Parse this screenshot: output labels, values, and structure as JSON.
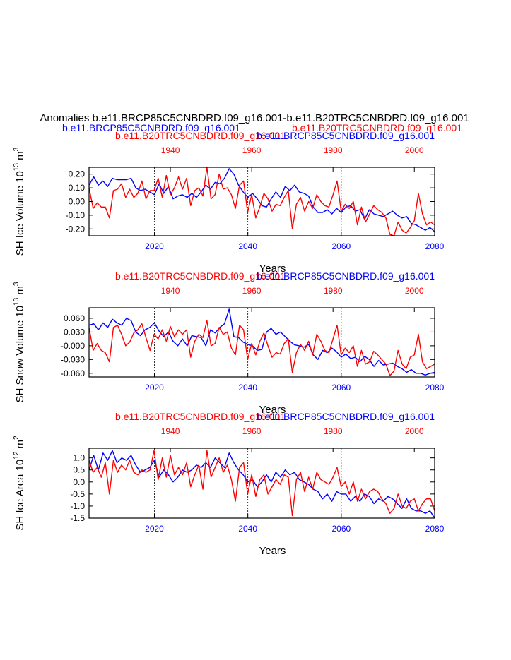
{
  "figure": {
    "main_title": "Anomalies b.e11.BRCP85C5CNBDRD.f09_g16.001-b.e11.B20TRC5CNBDRD.f09_g16.001",
    "header_left": "b.e11.BRCP85C5CNBDRD.f09_g16.001",
    "header_right": "b.e11.B20TRC5CNBDRD.f09_g16.001",
    "colors": {
      "blue_series": "#0000ff",
      "red_series": "#ff0000",
      "axis": "#000000",
      "grid": "#000000"
    }
  },
  "chart_data": [
    {
      "type": "line",
      "panel": "ice-volume",
      "subtitle_left": "b.e11.B20TRC5CNBDRD.f09_g16.001",
      "subtitle_right": "b.e11.BRCP85C5CNBDRD.f09_g16.001",
      "ylabel": "SH Ice Volume 10",
      "ylabel_exp": "13",
      "ylabel_unit": " m",
      "ylabel_unit_exp": "3",
      "xlabel": "Years",
      "xlim": [
        2006,
        2080
      ],
      "xlim_top": [
        1920,
        2005
      ],
      "ylim": [
        -0.25,
        0.25
      ],
      "yticks": [
        -0.2,
        -0.1,
        0.0,
        0.1,
        0.2
      ],
      "ytick_labels": [
        "-0.20",
        "-0.10",
        "0.00",
        "0.10",
        "0.20"
      ],
      "xticks": [
        2020,
        2040,
        2060,
        2080
      ],
      "xtick_labels": [
        "2020",
        "2040",
        "2060",
        "2080"
      ],
      "xticks_top": [
        1940,
        1960,
        1980,
        2000
      ],
      "xtick_labels_top": [
        "1940",
        "1960",
        "1980",
        "2000"
      ],
      "series": [
        {
          "name": "b.e11.BRCP85C5CNBDRD.f09_g16.001",
          "axis": "bottom",
          "x_start": 2006,
          "values": [
            0.12,
            0.18,
            0.12,
            0.15,
            0.11,
            0.17,
            0.16,
            0.16,
            0.16,
            0.17,
            0.1,
            0.08,
            0.09,
            0.07,
            0.05,
            0.13,
            0.06,
            0.11,
            0.02,
            0.04,
            0.05,
            0.03,
            0.06,
            0.03,
            0.07,
            0.12,
            0.09,
            0.14,
            0.13,
            0.17,
            0.24,
            0.2,
            0.12,
            0.07,
            0.03,
            0.06,
            0.02,
            -0.03,
            -0.04,
            0.02,
            0.07,
            0.03,
            0.11,
            0.08,
            0.12,
            0.07,
            0.06,
            0.04,
            -0.04,
            -0.08,
            -0.08,
            -0.06,
            -0.09,
            -0.05,
            -0.08,
            -0.04,
            -0.03,
            -0.07,
            -0.06,
            -0.13,
            -0.06,
            -0.09,
            -0.1,
            -0.11,
            -0.09,
            -0.07,
            -0.1,
            -0.12,
            -0.11,
            -0.16,
            -0.17,
            -0.19,
            -0.21,
            -0.19,
            -0.22
          ]
        },
        {
          "name": "b.e11.B20TRC5CNBDRD.f09_g16.001",
          "axis": "top",
          "x_start": 1920,
          "values": [
            0.1,
            -0.05,
            -0.01,
            -0.04,
            -0.04,
            -0.12,
            0.08,
            0.09,
            0.13,
            0.03,
            0.09,
            0.03,
            0.06,
            0.15,
            0.02,
            0.08,
            0.08,
            0.17,
            0.03,
            0.19,
            0.05,
            0.1,
            0.18,
            0.09,
            0.17,
            -0.03,
            0.08,
            0.1,
            0.04,
            0.26,
            0.02,
            0.05,
            0.2,
            0.09,
            0.1,
            0.05,
            -0.05,
            0.12,
            0.15,
            -0.08,
            0.05,
            -0.12,
            -0.04,
            0.06,
            0.02,
            -0.07,
            -0.02,
            -0.03,
            0.03,
            0.08,
            -0.2,
            -0.02,
            0.03,
            -0.07,
            0.0,
            -0.05,
            0.05,
            0.0,
            -0.03,
            -0.04,
            0.05,
            0.15,
            -0.07,
            -0.02,
            -0.05,
            0.0,
            -0.17,
            -0.04,
            -0.15,
            -0.09,
            -0.03,
            -0.06,
            -0.08,
            -0.12,
            -0.24,
            -0.26,
            -0.15,
            -0.21,
            -0.23,
            -0.19,
            -0.14,
            0.06,
            -0.09,
            -0.17,
            -0.15,
            -0.17
          ]
        }
      ]
    },
    {
      "type": "line",
      "panel": "snow-volume",
      "subtitle_left": "b.e11.B20TRC5CNBDRD.f09_g16.001",
      "subtitle_right": "b.e11.BRCP85C5CNBDRD.f09_g16.001",
      "ylabel": "SH Snow Volume 10",
      "ylabel_exp": "13",
      "ylabel_unit": " m",
      "ylabel_unit_exp": "3",
      "xlabel": "Years",
      "xlim": [
        2006,
        2080
      ],
      "xlim_top": [
        1920,
        2005
      ],
      "ylim": [
        -0.068,
        0.083
      ],
      "yticks": [
        -0.06,
        -0.03,
        0.0,
        0.03,
        0.06
      ],
      "ytick_labels": [
        "-0.060",
        "-0.030",
        "-0.000",
        "0.030",
        "0.060"
      ],
      "xticks": [
        2020,
        2040,
        2060,
        2080
      ],
      "xtick_labels": [
        "2020",
        "2040",
        "2060",
        "2080"
      ],
      "xticks_top": [
        1940,
        1960,
        1980,
        2000
      ],
      "xtick_labels_top": [
        "1940",
        "1960",
        "1980",
        "2000"
      ],
      "series": [
        {
          "name": "b.e11.BRCP85C5CNBDRD.f09_g16.001",
          "axis": "bottom",
          "x_start": 2006,
          "values": [
            0.045,
            0.048,
            0.035,
            0.05,
            0.04,
            0.058,
            0.05,
            0.045,
            0.06,
            0.055,
            0.03,
            0.022,
            0.035,
            0.04,
            0.05,
            0.032,
            0.02,
            0.03,
            0.01,
            0.0,
            0.015,
            0.0,
            0.022,
            0.02,
            0.018,
            0.0,
            0.035,
            0.028,
            0.04,
            0.048,
            0.08,
            0.02,
            0.018,
            0.008,
            0.003,
            0.0,
            -0.01,
            -0.008,
            0.03,
            0.038,
            0.025,
            0.03,
            0.02,
            0.01,
            0.002,
            0.0,
            -0.003,
            0.003,
            -0.02,
            -0.03,
            -0.01,
            -0.015,
            -0.005,
            -0.013,
            -0.025,
            -0.018,
            -0.028,
            -0.025,
            -0.035,
            -0.023,
            -0.03,
            -0.045,
            -0.032,
            -0.042,
            -0.04,
            -0.038,
            -0.045,
            -0.05,
            -0.058,
            -0.052,
            -0.06,
            -0.06,
            -0.064,
            -0.06,
            -0.058
          ]
        },
        {
          "name": "b.e11.B20TRC5CNBDRD.f09_g16.001",
          "axis": "top",
          "x_start": 1920,
          "values": [
            0.04,
            -0.01,
            0.005,
            -0.01,
            -0.015,
            -0.035,
            0.04,
            0.045,
            0.025,
            0.0,
            0.008,
            0.028,
            0.035,
            0.048,
            0.018,
            -0.01,
            0.025,
            0.015,
            0.035,
            0.01,
            0.042,
            0.02,
            0.035,
            0.025,
            0.035,
            -0.025,
            0.01,
            0.025,
            0.018,
            0.055,
            0.0,
            0.005,
            0.04,
            0.025,
            0.03,
            -0.005,
            -0.02,
            0.045,
            0.035,
            -0.03,
            0.005,
            -0.02,
            0.01,
            0.028,
            0.0,
            -0.025,
            -0.015,
            -0.018,
            0.005,
            0.015,
            -0.058,
            -0.015,
            0.003,
            -0.01,
            0.01,
            -0.02,
            0.025,
            0.01,
            -0.01,
            -0.015,
            0.015,
            0.045,
            -0.02,
            -0.005,
            -0.015,
            0.0,
            -0.045,
            -0.01,
            -0.04,
            -0.035,
            -0.012,
            -0.02,
            -0.03,
            -0.04,
            -0.065,
            -0.055,
            -0.01,
            -0.04,
            -0.05,
            -0.025,
            -0.02,
            0.025,
            -0.035,
            -0.05,
            -0.045,
            -0.04
          ]
        }
      ]
    },
    {
      "type": "line",
      "panel": "ice-area",
      "subtitle_left": "b.e11.B20TRC5CNBDRD.f09_g16.001",
      "subtitle_right": "b.e11.BRCP85C5CNBDRD.f09_g16.001",
      "ylabel": "SH Ice Area 10",
      "ylabel_exp": "12",
      "ylabel_unit": " m",
      "ylabel_unit_exp": "2",
      "xlabel": "Years",
      "xlim": [
        2006,
        2080
      ],
      "xlim_top": [
        1920,
        2005
      ],
      "ylim": [
        -1.5,
        1.4
      ],
      "yticks": [
        -1.5,
        -1.0,
        -0.5,
        0.0,
        0.5,
        1.0
      ],
      "ytick_labels": [
        "-1.5",
        "-1.0",
        "-0.5",
        "0.0",
        "0.5",
        "1.0"
      ],
      "xticks": [
        2020,
        2040,
        2060,
        2080
      ],
      "xtick_labels": [
        "2020",
        "2040",
        "2060",
        "2080"
      ],
      "xticks_top": [
        1940,
        1960,
        1980,
        2000
      ],
      "xtick_labels_top": [
        "1940",
        "1960",
        "1980",
        "2000"
      ],
      "series": [
        {
          "name": "b.e11.BRCP85C5CNBDRD.f09_g16.001",
          "axis": "bottom",
          "x_start": 2006,
          "values": [
            0.5,
            1.1,
            0.5,
            1.2,
            0.9,
            1.3,
            0.8,
            1.0,
            0.9,
            1.1,
            0.7,
            0.4,
            0.5,
            0.6,
            0.9,
            0.2,
            0.5,
            0.3,
            0.0,
            0.2,
            0.5,
            0.4,
            0.5,
            0.7,
            0.6,
            0.8,
            0.6,
            1.0,
            0.8,
            0.6,
            1.2,
            0.8,
            0.5,
            0.3,
            0.0,
            0.1,
            -0.2,
            0.0,
            0.3,
            0.0,
            0.4,
            0.2,
            0.5,
            0.3,
            0.4,
            0.1,
            0.0,
            -0.1,
            -0.3,
            -0.4,
            -0.7,
            -0.5,
            -0.8,
            -0.4,
            -0.5,
            -0.5,
            -0.8,
            -0.6,
            -0.8,
            -0.5,
            -0.6,
            -0.9,
            -0.7,
            -0.8,
            -0.6,
            -0.7,
            -0.9,
            -1.1,
            -0.7,
            -1.1,
            -1.2,
            -1.2,
            -1.3,
            -1.2,
            -1.6
          ]
        },
        {
          "name": "b.e11.B20TRC5CNBDRD.f09_g16.001",
          "axis": "top",
          "x_start": 1920,
          "values": [
            0.9,
            0.4,
            0.6,
            0.2,
            0.8,
            -0.5,
            0.9,
            0.4,
            0.7,
            0.5,
            0.9,
            0.4,
            0.3,
            0.5,
            0.4,
            0.5,
            1.3,
            0.1,
            1.0,
            0.2,
            1.1,
            0.3,
            0.6,
            0.3,
            0.8,
            -0.2,
            0.3,
            0.7,
            -0.3,
            1.3,
            0.2,
            0.6,
            1.0,
            0.4,
            0.7,
            0.1,
            -0.8,
            0.6,
            0.8,
            -0.5,
            0.3,
            -0.6,
            0.1,
            0.3,
            -0.5,
            -0.2,
            0.1,
            -0.1,
            0.3,
            0.2,
            -1.4,
            0.1,
            0.4,
            -0.4,
            0.2,
            -0.3,
            0.4,
            0.1,
            0.0,
            -0.1,
            0.2,
            0.6,
            -0.2,
            0.0,
            -0.5,
            0.0,
            -0.8,
            -0.3,
            -0.7,
            -0.4,
            -0.3,
            -0.4,
            -0.7,
            -0.9,
            -1.3,
            -1.1,
            -0.5,
            -1.0,
            -1.1,
            -0.8,
            -0.7,
            -1.2,
            -0.9,
            -0.7,
            -0.7,
            -1.2
          ]
        }
      ]
    }
  ]
}
